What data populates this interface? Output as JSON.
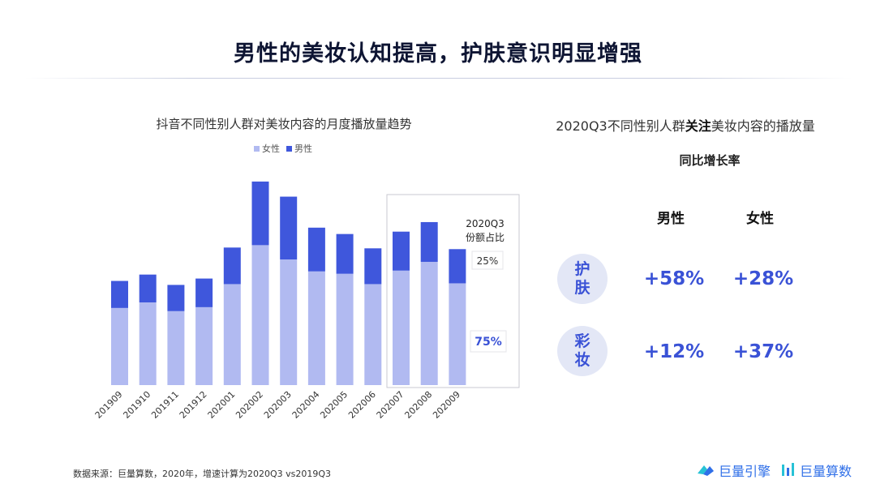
{
  "header": {
    "title": "男性的美妆认知提高，护肤意识明显增强"
  },
  "colors": {
    "female": "#b1baf1",
    "male": "#3f57dc",
    "accent": "#3a52d6",
    "circle_bg": "#e3e7f6"
  },
  "chart_data": {
    "type": "bar",
    "stacked": true,
    "title": "抖音不同性别人群对美妆内容的月度播放量趋势",
    "categories": [
      "201909",
      "201910",
      "201911",
      "201912",
      "202001",
      "202002",
      "202003",
      "202004",
      "202005",
      "202006",
      "202007",
      "202008",
      "202009"
    ],
    "series": [
      {
        "name": "女性",
        "values": [
          97,
          104,
          93,
          98,
          127,
          176,
          158,
          143,
          140,
          127,
          144,
          155,
          128
        ]
      },
      {
        "name": "男性",
        "values": [
          34,
          35,
          33,
          36,
          46,
          80,
          79,
          55,
          50,
          45,
          49,
          50,
          43
        ]
      }
    ],
    "legend_position": "top-center",
    "grid": false,
    "ylim": [
      0,
      260
    ],
    "highlight": {
      "categories": [
        "202007",
        "202008",
        "202009"
      ],
      "label": "2020Q3份额占比",
      "male_share": "25%",
      "female_share": "75%"
    }
  },
  "right_panel": {
    "title_pre": "2020Q3不同性别人群",
    "title_hl": "关注",
    "title_post": "美妆内容的播放量",
    "subtitle": "同比增长率",
    "columns": [
      "男性",
      "女性"
    ],
    "rows": [
      {
        "label_top": "护",
        "label_bottom": "肤",
        "male": "+58%",
        "female": "+28%"
      },
      {
        "label_top": "彩",
        "label_bottom": "妆",
        "male": "+12%",
        "female": "+37%"
      }
    ]
  },
  "footer": {
    "source": "数据来源：巨量算数，2020年，增速计算为2020Q3 vs2019Q3",
    "logo_1": "巨量引擎",
    "logo_2": "巨量算数"
  }
}
